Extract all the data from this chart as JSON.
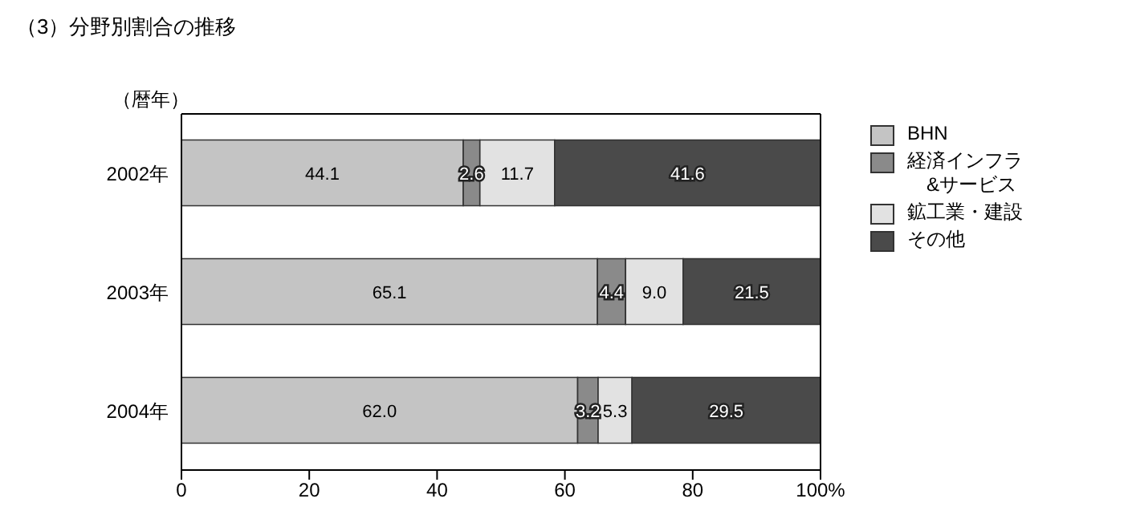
{
  "chart_data": {
    "type": "bar",
    "orientation": "horizontal",
    "stacked": true,
    "title": "（3）分野別割合の推移",
    "ylabel": "（暦年）",
    "categories": [
      "2002年",
      "2003年",
      "2004年"
    ],
    "series": [
      {
        "name": "BHN",
        "color": "#c4c4c4",
        "values": [
          44.1,
          65.1,
          62.0
        ],
        "value_labels": [
          "44.1",
          "65.1",
          "62.0"
        ]
      },
      {
        "name": "経済インフラ\n&サービス",
        "color": "#8a8a8a",
        "values": [
          2.6,
          4.4,
          3.2
        ],
        "value_labels": [
          "2.6",
          "4.4",
          "3.2"
        ]
      },
      {
        "name": "鉱工業・建設",
        "color": "#e2e2e2",
        "values": [
          11.7,
          9.0,
          5.3
        ],
        "value_labels": [
          "11.7",
          "9.0",
          "5.3"
        ]
      },
      {
        "name": "その他",
        "color": "#4a4a4a",
        "values": [
          41.6,
          21.5,
          29.5
        ],
        "value_labels": [
          "41.6",
          "21.5",
          "29.5"
        ]
      }
    ],
    "xlim": [
      0,
      100
    ],
    "xticks": [
      0,
      20,
      40,
      60,
      80,
      {
        "value": 100,
        "label": "100%"
      }
    ],
    "legend": "right"
  }
}
